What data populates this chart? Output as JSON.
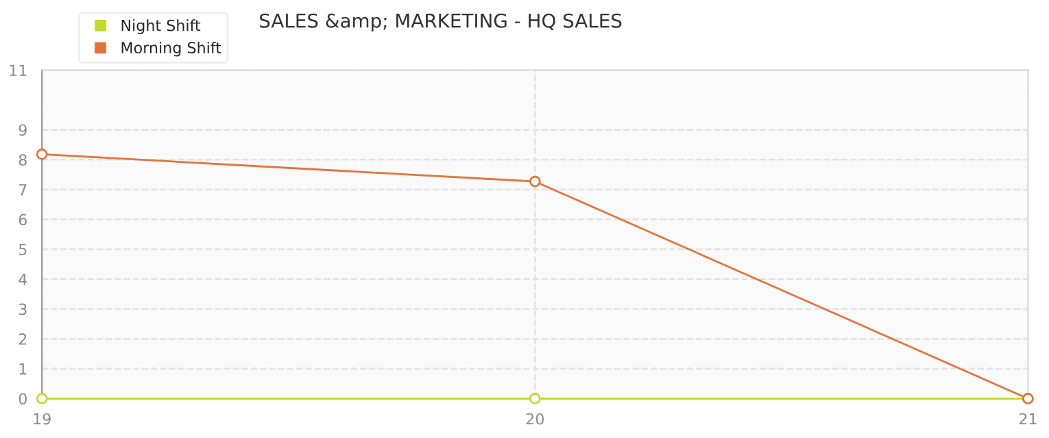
{
  "chart_data": {
    "type": "line",
    "title": "SALES &amp; MARKETING - HQ SALES",
    "x": [
      19,
      20,
      21
    ],
    "xlim": [
      19,
      21
    ],
    "xticks": [
      19,
      20,
      21
    ],
    "ylim": [
      0,
      11
    ],
    "yticks": [
      0,
      1,
      2,
      3,
      4,
      5,
      6,
      7,
      8,
      9,
      11
    ],
    "series": [
      {
        "name": "Night Shift",
        "color": "#c2da2e",
        "values": [
          0,
          0,
          0
        ]
      },
      {
        "name": "Morning Shift",
        "color": "#e4733b",
        "values": [
          8.18,
          7.27,
          0
        ]
      }
    ],
    "grid": true,
    "legend": "top left",
    "marker": "circle",
    "line_style": "solid"
  }
}
